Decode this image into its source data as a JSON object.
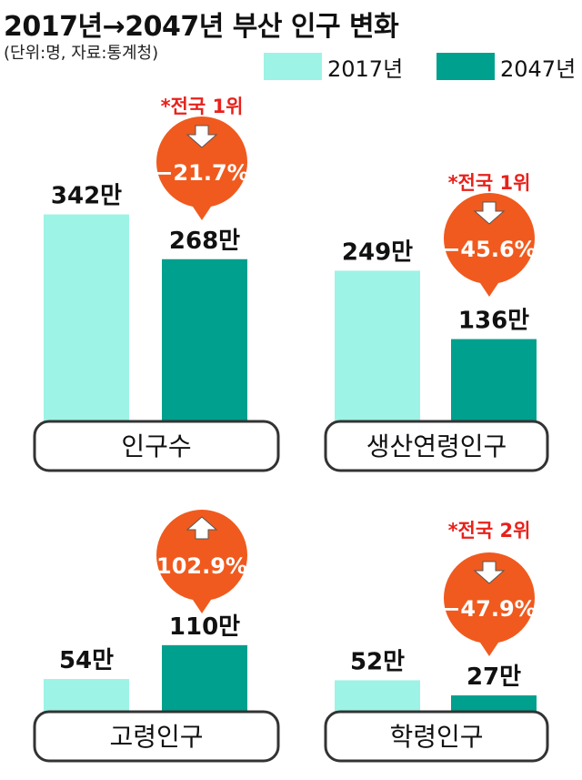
{
  "header": {
    "title": "2017년→2047년 부산 인구 변화",
    "subtitle": "(단위:명, 자료:통계청)"
  },
  "legend": [
    {
      "label": "2017년",
      "color": "#9df3e6"
    },
    {
      "label": "2047년",
      "color": "#00a08e"
    }
  ],
  "chart_data": {
    "type": "bar",
    "series": [
      {
        "name": "2017년",
        "color": "#9df3e6"
      },
      {
        "name": "2047년",
        "color": "#00a08e"
      }
    ],
    "panels": [
      {
        "category": "인구수",
        "values": [
          342,
          268
        ],
        "labels": [
          "342만",
          "268만"
        ],
        "change": "−21.7%",
        "direction": "down",
        "rank": "*전국 1위"
      },
      {
        "category": "생산연령인구",
        "values": [
          249,
          136
        ],
        "labels": [
          "249만",
          "136만"
        ],
        "change": "−45.6%",
        "direction": "down",
        "rank": "*전국 1위"
      },
      {
        "category": "고령인구",
        "values": [
          54,
          110
        ],
        "labels": [
          "54만",
          "110만"
        ],
        "change": "102.9%",
        "direction": "up",
        "rank": ""
      },
      {
        "category": "학령인구",
        "values": [
          52,
          27
        ],
        "labels": [
          "52만",
          "27만"
        ],
        "change": "−47.9%",
        "direction": "down",
        "rank": "*전국 2위"
      }
    ],
    "unit": "만"
  }
}
